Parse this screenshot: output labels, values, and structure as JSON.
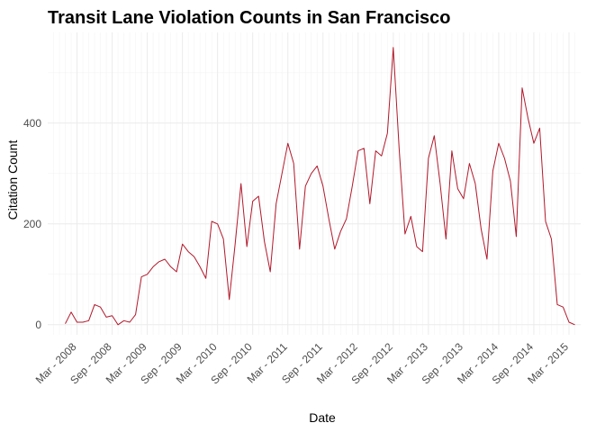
{
  "chart_data": {
    "type": "line",
    "title": "Transit Lane Violation Counts in San Francisco",
    "xlabel": "Date",
    "ylabel": "Citation Count",
    "x_tick_labels": [
      "Mar - 2008",
      "Sep - 2008",
      "Mar - 2009",
      "Sep - 2009",
      "Mar - 2010",
      "Sep - 2010",
      "Mar - 2011",
      "Sep - 2011",
      "Mar - 2012",
      "Sep - 2012",
      "Mar - 2013",
      "Sep - 2013",
      "Mar - 2014",
      "Sep - 2014",
      "Mar - 2015"
    ],
    "y_ticks": [
      0,
      200,
      400
    ],
    "ylim": [
      -20,
      580
    ],
    "xlim": [
      "2007-10",
      "2015-05"
    ],
    "grid": true,
    "series_color": "#b2182b",
    "x": [
      "2008-01",
      "2008-02",
      "2008-03",
      "2008-04",
      "2008-05",
      "2008-06",
      "2008-07",
      "2008-08",
      "2008-09",
      "2008-10",
      "2008-11",
      "2008-12",
      "2009-01",
      "2009-02",
      "2009-03",
      "2009-04",
      "2009-05",
      "2009-06",
      "2009-07",
      "2009-08",
      "2009-09",
      "2009-10",
      "2009-11",
      "2009-12",
      "2010-01",
      "2010-02",
      "2010-03",
      "2010-04",
      "2010-05",
      "2010-06",
      "2010-07",
      "2010-08",
      "2010-09",
      "2010-10",
      "2010-11",
      "2010-12",
      "2011-01",
      "2011-02",
      "2011-03",
      "2011-04",
      "2011-05",
      "2011-06",
      "2011-07",
      "2011-08",
      "2011-09",
      "2011-10",
      "2011-11",
      "2011-12",
      "2012-01",
      "2012-02",
      "2012-03",
      "2012-04",
      "2012-05",
      "2012-06",
      "2012-07",
      "2012-08",
      "2012-09",
      "2012-10",
      "2012-11",
      "2012-12",
      "2013-01",
      "2013-02",
      "2013-03",
      "2013-04",
      "2013-05",
      "2013-06",
      "2013-07",
      "2013-08",
      "2013-09",
      "2013-10",
      "2013-11",
      "2013-12",
      "2014-01",
      "2014-02",
      "2014-03",
      "2014-04",
      "2014-05",
      "2014-06",
      "2014-07",
      "2014-08",
      "2014-09",
      "2014-10",
      "2014-11",
      "2014-12",
      "2015-01",
      "2015-02",
      "2015-03",
      "2015-04"
    ],
    "values": [
      2,
      25,
      5,
      5,
      8,
      40,
      35,
      15,
      18,
      0,
      8,
      5,
      20,
      95,
      100,
      115,
      125,
      130,
      115,
      105,
      160,
      145,
      135,
      115,
      92,
      205,
      200,
      170,
      50,
      160,
      280,
      155,
      245,
      255,
      165,
      105,
      240,
      300,
      360,
      320,
      150,
      275,
      300,
      315,
      275,
      210,
      150,
      185,
      210,
      275,
      345,
      350,
      240,
      345,
      335,
      380,
      550,
      350,
      180,
      215,
      155,
      145,
      330,
      375,
      280,
      170,
      345,
      270,
      250,
      320,
      280,
      190,
      130,
      305,
      360,
      330,
      285,
      175,
      470,
      410,
      360,
      390,
      205,
      170,
      40,
      35,
      5,
      0
    ]
  }
}
